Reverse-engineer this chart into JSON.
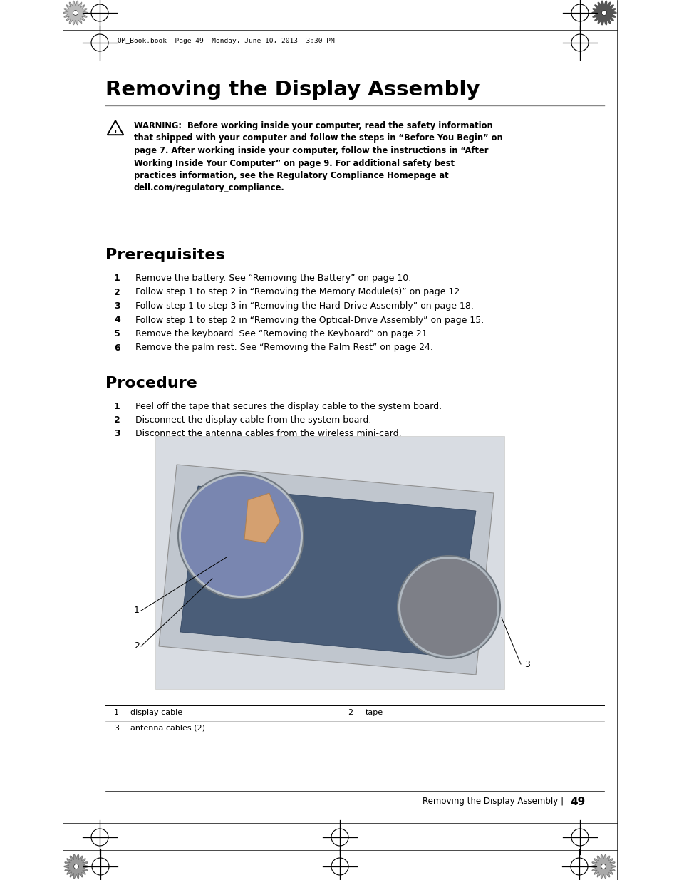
{
  "page_bg": "#ffffff",
  "header_text": "OM_Book.book  Page 49  Monday, June 10, 2013  3:30 PM",
  "title": "Removing the Display Assembly",
  "warning_text_bold": "WARNING:  Before working inside your computer, read the safety information\nthat shipped with your computer and follow the steps in “Before You Begin” on\npage 7. After working inside your computer, follow the instructions in “After\nWorking Inside Your Computer” on page 9. For additional safety best\npractices information, see the Regulatory Compliance Homepage at\ndell.com/regulatory_compliance.",
  "prereq_title": "Prerequisites",
  "prereq_items": [
    "Remove the battery. See “Removing the Battery” on page 10.",
    "Follow step 1 to step 2 in “Removing the Memory Module(s)” on page 12.",
    "Follow step 1 to step 3 in “Removing the Hard-Drive Assembly” on page 18.",
    "Follow step 1 to step 2 in “Removing the Optical-Drive Assembly” on page 15.",
    "Remove the keyboard. See “Removing the Keyboard” on page 21.",
    "Remove the palm rest. See “Removing the Palm Rest” on page 24."
  ],
  "procedure_title": "Procedure",
  "procedure_items": [
    "Peel off the tape that secures the display cable to the system board.",
    "Disconnect the display cable from the system board.",
    "Disconnect the antenna cables from the wireless mini-card."
  ],
  "table_rows": [
    [
      "1",
      "display cable",
      "2",
      "tape"
    ],
    [
      "3",
      "antenna cables (2)",
      "",
      ""
    ]
  ],
  "footer_text": "Removing the Display Assembly",
  "page_number": "49"
}
